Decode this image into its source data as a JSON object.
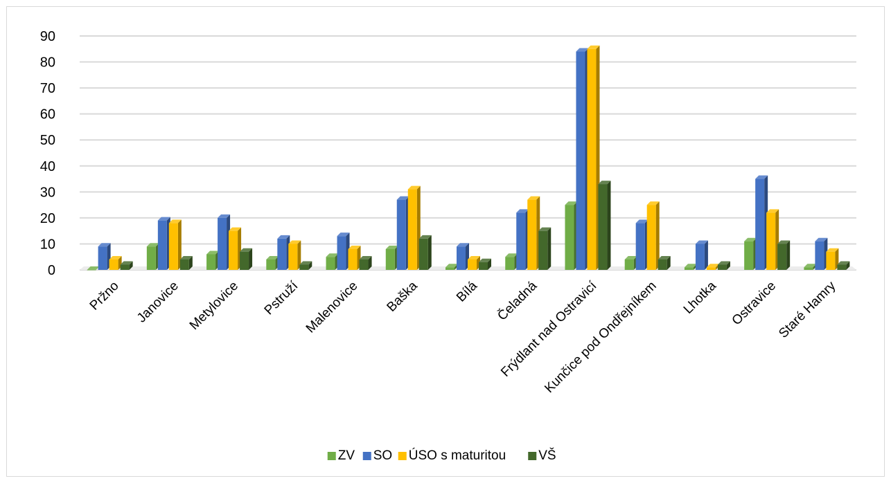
{
  "chart_data": {
    "type": "bar",
    "style": "3d-clustered-column",
    "ylim": [
      0,
      90
    ],
    "yticks": [
      "0",
      "10",
      "20",
      "30",
      "40",
      "50",
      "60",
      "70",
      "80",
      "90"
    ],
    "grid": true,
    "legend_position": "bottom",
    "categories": [
      "Pržno",
      "Janovice",
      "Metylovice",
      "Pstruží",
      "Malenovice",
      "Baška",
      "Bílá",
      "Čeladná",
      "Frýdlant nad Ostravicí",
      "Kunčice pod Ondřejníkem",
      "Lhotka",
      "Ostravice",
      "Staré Hamry"
    ],
    "series": [
      {
        "name": "ZV",
        "color": "#70ad47",
        "values": [
          0,
          9,
          6,
          4,
          5,
          8,
          1,
          5,
          25,
          4,
          1,
          11,
          1
        ]
      },
      {
        "name": "SO",
        "color": "#4472c4",
        "values": [
          9,
          19,
          20,
          12,
          13,
          27,
          9,
          22,
          84,
          18,
          10,
          35,
          11
        ]
      },
      {
        "name": "ÚSO s maturitou",
        "color": "#ffc000",
        "values": [
          4,
          18,
          15,
          10,
          8,
          31,
          4,
          27,
          85,
          25,
          1,
          22,
          7
        ]
      },
      {
        "name": "VŠ",
        "color": "#43682b",
        "values": [
          2,
          4,
          7,
          2,
          4,
          12,
          3,
          15,
          33,
          4,
          2,
          10,
          2
        ]
      }
    ]
  }
}
